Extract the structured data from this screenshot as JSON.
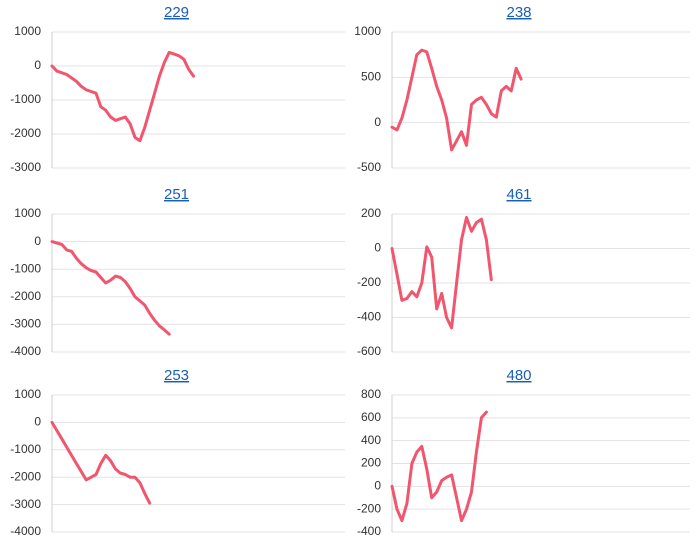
{
  "chart_data": [
    {
      "type": "line",
      "title": "229",
      "color": "#f0566e",
      "grid": true,
      "ylim": [
        -3000,
        1000
      ],
      "yticks": [
        1000,
        0,
        -1000,
        -2000,
        -3000
      ],
      "values": [
        0,
        -150,
        -200,
        -250,
        -350,
        -450,
        -600,
        -700,
        -750,
        -800,
        -1200,
        -1300,
        -1500,
        -1600,
        -1550,
        -1500,
        -1700,
        -2100,
        -2200,
        -1800,
        -1300,
        -800,
        -300,
        100,
        400,
        350,
        300,
        200,
        -100,
        -300
      ]
    },
    {
      "type": "line",
      "title": "238",
      "color": "#f0566e",
      "grid": true,
      "ylim": [
        -500,
        1000
      ],
      "yticks": [
        1000,
        500,
        0,
        -500
      ],
      "values": [
        -50,
        -80,
        50,
        250,
        500,
        750,
        800,
        780,
        600,
        400,
        250,
        50,
        -300,
        -200,
        -100,
        -250,
        200,
        250,
        280,
        200,
        100,
        60,
        350,
        400,
        350,
        600,
        480
      ]
    },
    {
      "type": "line",
      "title": "251",
      "color": "#f0566e",
      "grid": true,
      "ylim": [
        -4000,
        1000
      ],
      "yticks": [
        1000,
        0,
        -1000,
        -2000,
        -3000,
        -4000
      ],
      "values": [
        0,
        -50,
        -100,
        -300,
        -350,
        -600,
        -800,
        -950,
        -1050,
        -1100,
        -1300,
        -1500,
        -1400,
        -1250,
        -1300,
        -1450,
        -1700,
        -2000,
        -2150,
        -2300,
        -2600,
        -2850,
        -3050,
        -3200,
        -3350
      ]
    },
    {
      "type": "line",
      "title": "461",
      "color": "#f0566e",
      "grid": true,
      "ylim": [
        -600,
        200
      ],
      "yticks": [
        200,
        0,
        -200,
        -400,
        -600
      ],
      "values": [
        0,
        -150,
        -300,
        -290,
        -250,
        -280,
        -200,
        10,
        -50,
        -350,
        -260,
        -400,
        -460,
        -200,
        50,
        180,
        100,
        150,
        170,
        50,
        -180
      ]
    },
    {
      "type": "line",
      "title": "253",
      "color": "#f0566e",
      "grid": true,
      "ylim": [
        -4000,
        1000
      ],
      "yticks": [
        1000,
        0,
        -1000,
        -2000,
        -3000,
        -4000
      ],
      "values": [
        0,
        -300,
        -600,
        -900,
        -1200,
        -1500,
        -1800,
        -2100,
        -2000,
        -1900,
        -1500,
        -1200,
        -1400,
        -1700,
        -1850,
        -1900,
        -2000,
        -2000,
        -2200,
        -2600,
        -2950
      ]
    },
    {
      "type": "line",
      "title": "480",
      "color": "#f0566e",
      "grid": true,
      "ylim": [
        -400,
        800
      ],
      "yticks": [
        800,
        600,
        400,
        200,
        0,
        -200,
        -400
      ],
      "values": [
        0,
        -200,
        -300,
        -150,
        200,
        300,
        350,
        150,
        -100,
        -50,
        50,
        80,
        100,
        -100,
        -300,
        -200,
        -50,
        300,
        600,
        650
      ]
    }
  ]
}
